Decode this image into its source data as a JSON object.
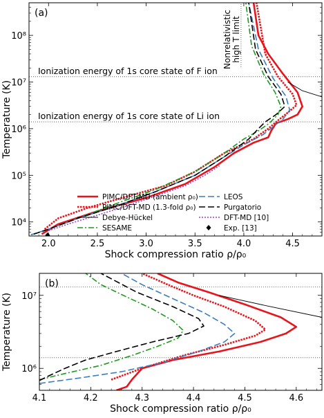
{
  "chart_data": [
    {
      "type": "line",
      "panel_label": "(a)",
      "xlabel": "Shock compression ratio ρ/ρ₀",
      "ylabel": "Temperature (K)",
      "xlim": [
        1.8,
        4.8
      ],
      "ylim": [
        5000,
        500000000
      ],
      "yscale": "log",
      "xticks": [
        "2.0",
        "2.5",
        "3.0",
        "3.5",
        "4.0",
        "4.5"
      ],
      "yticks": [
        "10⁴",
        "10⁵",
        "10⁶",
        "10⁷",
        "10⁸"
      ],
      "legend_position": "bottom-right",
      "annotations": [
        {
          "text": "Ionization energy of 1s core state of F ion",
          "y": 13000000
        },
        {
          "text": "Ionization energy of 1s core state of Li ion",
          "y": 1400000
        },
        {
          "text": "Nonrelativistic high T limit",
          "x": 4.0
        }
      ],
      "series": [
        {
          "name": "PIMC/DFT-MD (ambient ρ₀)",
          "color": "#e8141c",
          "style": "solid",
          "points": [
            [
              1.93,
              5500
            ],
            [
              2.1,
              9000
            ],
            [
              2.5,
              17000
            ],
            [
              3.0,
              33000
            ],
            [
              3.4,
              65000
            ],
            [
              3.7,
              150000
            ],
            [
              3.9,
              300000
            ],
            [
              4.1,
              500000
            ],
            [
              4.25,
              650000
            ],
            [
              4.28,
              900000
            ],
            [
              4.33,
              1300000
            ],
            [
              4.45,
              1600000
            ],
            [
              4.55,
              2000000
            ],
            [
              4.6,
              3000000
            ],
            [
              4.55,
              6000000
            ],
            [
              4.4,
              15000000
            ],
            [
              4.25,
              40000000
            ],
            [
              4.15,
              100000000
            ],
            [
              4.1,
              500000000
            ]
          ]
        },
        {
          "name": "PIMC/DFT-MD (1.3-fold ρ₀)",
          "color": "#e8141c",
          "style": "dotted",
          "points": [
            [
              1.96,
              7000
            ],
            [
              2.1,
              12000
            ],
            [
              2.4,
              20000
            ],
            [
              2.8,
              35000
            ],
            [
              3.2,
              60000
            ],
            [
              3.5,
              120000
            ],
            [
              3.8,
              300000
            ],
            [
              4.1,
              600000
            ],
            [
              4.25,
              1000000
            ],
            [
              4.35,
              1500000
            ],
            [
              4.45,
              2200000
            ],
            [
              4.54,
              3200000
            ],
            [
              4.5,
              5500000
            ],
            [
              4.35,
              13000000
            ],
            [
              4.22,
              40000000
            ],
            [
              4.13,
              500000000
            ]
          ]
        },
        {
          "name": "Debye-Hückel",
          "color": "#000000",
          "style": "solid",
          "points": [
            [
              4.45,
              10000000
            ],
            [
              4.6,
              6500000
            ],
            [
              4.8,
              4800000
            ]
          ]
        },
        {
          "name": "SESAME",
          "color": "#1a9a1a",
          "style": "dashdot",
          "points": [
            [
              1.82,
              5300
            ],
            [
              2.0,
              7000
            ],
            [
              2.3,
              12000
            ],
            [
              2.7,
              25000
            ],
            [
              3.1,
              50000
            ],
            [
              3.5,
              120000
            ],
            [
              3.8,
              300000
            ],
            [
              4.0,
              600000
            ],
            [
              4.15,
              900000
            ],
            [
              4.26,
              1300000
            ],
            [
              4.35,
              2000000
            ],
            [
              4.38,
              3000000
            ],
            [
              4.32,
              6000000
            ],
            [
              4.2,
              15000000
            ],
            [
              4.08,
              60000000
            ],
            [
              4.02,
              500000000
            ]
          ]
        },
        {
          "name": "LEOS",
          "color": "#3a7bbf",
          "style": "dashed",
          "points": [
            [
              1.82,
              5300
            ],
            [
              2.0,
              7000
            ],
            [
              2.3,
              12000
            ],
            [
              2.7,
              22000
            ],
            [
              3.1,
              45000
            ],
            [
              3.5,
              100000
            ],
            [
              3.8,
              250000
            ],
            [
              4.0,
              450000
            ],
            [
              4.2,
              750000
            ],
            [
              4.3,
              1100000
            ],
            [
              4.4,
              1600000
            ],
            [
              4.47,
              2500000
            ],
            [
              4.43,
              5000000
            ],
            [
              4.3,
              12000000
            ],
            [
              4.15,
              50000000
            ],
            [
              4.05,
              500000000
            ]
          ]
        },
        {
          "name": "Purgatorio",
          "color": "#000000",
          "style": "dashed",
          "points": [
            [
              1.85,
              5500
            ],
            [
              2.0,
              7000
            ],
            [
              2.3,
              12000
            ],
            [
              2.7,
              22000
            ],
            [
              3.1,
              45000
            ],
            [
              3.5,
              100000
            ],
            [
              3.8,
              250000
            ],
            [
              4.05,
              600000
            ],
            [
              4.15,
              1000000
            ],
            [
              4.22,
              1400000
            ],
            [
              4.33,
              2000000
            ],
            [
              4.42,
              3000000
            ],
            [
              4.38,
              5500000
            ],
            [
              4.25,
              13000000
            ],
            [
              4.12,
              50000000
            ],
            [
              4.05,
              500000000
            ]
          ]
        },
        {
          "name": "DFT-MD [10]",
          "color": "#9b46c8",
          "style": "dotted",
          "points": [
            [
              2.0,
              6500
            ],
            [
              2.2,
              9000
            ],
            [
              2.5,
              14000
            ],
            [
              2.8,
              22000
            ],
            [
              3.1,
              36000
            ],
            [
              3.4,
              60000
            ],
            [
              3.6,
              100000
            ],
            [
              3.75,
              160000
            ]
          ]
        },
        {
          "name": "Exp. [13]",
          "color": "#000000",
          "style": "marker",
          "points": [
            [
              1.99,
              5200
            ]
          ]
        }
      ]
    },
    {
      "type": "line",
      "panel_label": "(b)",
      "xlabel": "Shock compression ratio ρ/ρ₀",
      "ylabel": "Temperature (K)",
      "xlim": [
        4.1,
        4.65
      ],
      "ylim": [
        500000,
        20000000
      ],
      "yscale": "log",
      "xticks": [
        "4.1",
        "4.2",
        "4.3",
        "4.4",
        "4.5",
        "4.6"
      ],
      "yticks": [
        "10⁶",
        "10⁷"
      ],
      "reference_lines_y": [
        13000000,
        1400000
      ],
      "series": [
        {
          "name": "PIMC/DFT-MD (ambient ρ₀)",
          "color": "#e8141c",
          "style": "solid",
          "points": [
            [
              4.25,
              500000
            ],
            [
              4.27,
              560000
            ],
            [
              4.28,
              700000
            ],
            [
              4.3,
              1000000
            ],
            [
              4.36,
              1300000
            ],
            [
              4.45,
              1700000
            ],
            [
              4.53,
              2300000
            ],
            [
              4.58,
              3000000
            ],
            [
              4.6,
              3700000
            ],
            [
              4.57,
              5000000
            ],
            [
              4.5,
              7500000
            ],
            [
              4.43,
              11000000
            ],
            [
              4.37,
              15000000
            ],
            [
              4.33,
              20000000
            ]
          ]
        },
        {
          "name": "PIMC/DFT-MD (1.3-fold ρ₀)",
          "color": "#e8141c",
          "style": "dotted",
          "points": [
            [
              4.24,
              700000
            ],
            [
              4.3,
              1000000
            ],
            [
              4.38,
              1500000
            ],
            [
              4.46,
              2100000
            ],
            [
              4.52,
              2800000
            ],
            [
              4.54,
              3400000
            ],
            [
              4.52,
              4500000
            ],
            [
              4.46,
              7000000
            ],
            [
              4.4,
              10000000
            ],
            [
              4.35,
              14000000
            ],
            [
              4.3,
              20000000
            ]
          ]
        },
        {
          "name": "Debye-Hückel",
          "color": "#000000",
          "style": "solid",
          "points": [
            [
              4.45,
              10000000
            ],
            [
              4.55,
              7000000
            ],
            [
              4.65,
              5000000
            ]
          ]
        },
        {
          "name": "SESAME",
          "color": "#1a9a1a",
          "style": "dashdot",
          "points": [
            [
              4.1,
              700000
            ],
            [
              4.15,
              850000
            ],
            [
              4.22,
              1100000
            ],
            [
              4.28,
              1500000
            ],
            [
              4.33,
              2000000
            ],
            [
              4.37,
              2600000
            ],
            [
              4.38,
              3300000
            ],
            [
              4.36,
              4500000
            ],
            [
              4.32,
              6500000
            ],
            [
              4.27,
              9500000
            ],
            [
              4.22,
              14000000
            ],
            [
              4.19,
              20000000
            ]
          ]
        },
        {
          "name": "LEOS",
          "color": "#3a7bbf",
          "style": "dashed",
          "points": [
            [
              4.1,
              620000
            ],
            [
              4.18,
              740000
            ],
            [
              4.26,
              900000
            ],
            [
              4.34,
              1200000
            ],
            [
              4.41,
              1700000
            ],
            [
              4.46,
              2300000
            ],
            [
              4.48,
              3000000
            ],
            [
              4.46,
              4000000
            ],
            [
              4.42,
              5800000
            ],
            [
              4.36,
              9000000
            ],
            [
              4.3,
              14000000
            ],
            [
              4.26,
              20000000
            ]
          ]
        },
        {
          "name": "Purgatorio",
          "color": "#000000",
          "style": "dashed",
          "points": [
            [
              4.1,
              680000
            ],
            [
              4.12,
              800000
            ],
            [
              4.15,
              1000000
            ],
            [
              4.19,
              1300000
            ],
            [
              4.25,
              1700000
            ],
            [
              4.32,
              2300000
            ],
            [
              4.39,
              3000000
            ],
            [
              4.42,
              3800000
            ],
            [
              4.41,
              4800000
            ],
            [
              4.36,
              7000000
            ],
            [
              4.29,
              11000000
            ],
            [
              4.22,
              20000000
            ]
          ]
        }
      ]
    }
  ]
}
